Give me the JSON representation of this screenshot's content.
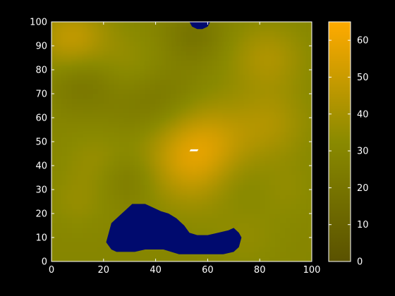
{
  "chart_data": {
    "type": "heatmap",
    "title": "",
    "xlabel": "",
    "ylabel": "",
    "xlim": [
      0,
      100
    ],
    "ylim": [
      0,
      100
    ],
    "x_ticks": [
      "0",
      "20",
      "40",
      "60",
      "80",
      "100"
    ],
    "y_ticks": [
      "0",
      "10",
      "20",
      "30",
      "40",
      "50",
      "60",
      "70",
      "80",
      "90",
      "100"
    ],
    "colorbar": {
      "range": [
        0,
        65
      ],
      "ticks": [
        "0",
        "10",
        "20",
        "30",
        "40",
        "50",
        "60"
      ],
      "color_low": "#5a5200",
      "color_mid": "#8a8a00",
      "color_high": "#ffaa00"
    },
    "background_field": {
      "base_value": 30,
      "color": "#8c8a12"
    },
    "hotspots": [
      {
        "x": 57,
        "y": 45,
        "value": 60,
        "spread": 14
      },
      {
        "x": 8,
        "y": 93,
        "value": 48,
        "spread": 10
      },
      {
        "x": 32,
        "y": 80,
        "value": 38,
        "spread": 10
      },
      {
        "x": 83,
        "y": 85,
        "value": 42,
        "spread": 10
      },
      {
        "x": 85,
        "y": 58,
        "value": 40,
        "spread": 10
      },
      {
        "x": 18,
        "y": 42,
        "value": 36,
        "spread": 9
      },
      {
        "x": 10,
        "y": 25,
        "value": 35,
        "spread": 8
      },
      {
        "x": 75,
        "y": 10,
        "value": 34,
        "spread": 9
      },
      {
        "x": 90,
        "y": 30,
        "value": 34,
        "spread": 9
      }
    ],
    "coldspots": [
      {
        "x": 40,
        "y": 68,
        "value": 18,
        "spread": 12
      },
      {
        "x": 12,
        "y": 75,
        "value": 20,
        "spread": 9
      },
      {
        "x": 70,
        "y": 35,
        "value": 22,
        "spread": 10
      },
      {
        "x": 30,
        "y": 35,
        "value": 22,
        "spread": 8
      },
      {
        "x": 55,
        "y": 95,
        "value": 20,
        "spread": 8
      }
    ],
    "masked_regions": {
      "color": "#000a6e",
      "regions": [
        {
          "points": [
            [
              21,
              8
            ],
            [
              22,
              12
            ],
            [
              23,
              16
            ],
            [
              26,
              19
            ],
            [
              29,
              22
            ],
            [
              31,
              24
            ],
            [
              36,
              24
            ],
            [
              38,
              23
            ],
            [
              42,
              21
            ],
            [
              45,
              20
            ],
            [
              48,
              18
            ],
            [
              51,
              15
            ],
            [
              53,
              12
            ],
            [
              56,
              11
            ],
            [
              60,
              11
            ],
            [
              64,
              12
            ],
            [
              68,
              13
            ],
            [
              70,
              14
            ],
            [
              72,
              12
            ],
            [
              73,
              10
            ],
            [
              72,
              6
            ],
            [
              70,
              4
            ],
            [
              66,
              3
            ],
            [
              62,
              3
            ],
            [
              57,
              3
            ],
            [
              53,
              3
            ],
            [
              49,
              3
            ],
            [
              46,
              4
            ],
            [
              43,
              5
            ],
            [
              40,
              5
            ],
            [
              36,
              5
            ],
            [
              32,
              4
            ],
            [
              28,
              4
            ],
            [
              25,
              4
            ],
            [
              23,
              5
            ]
          ]
        },
        {
          "points": [
            [
              53,
              100
            ],
            [
              54,
              98
            ],
            [
              56,
              97
            ],
            [
              58,
              97
            ],
            [
              60,
              98
            ],
            [
              61,
              100
            ]
          ]
        }
      ]
    },
    "highlight_marker": {
      "x": 54,
      "y": 46,
      "color": "#ffffff"
    }
  }
}
